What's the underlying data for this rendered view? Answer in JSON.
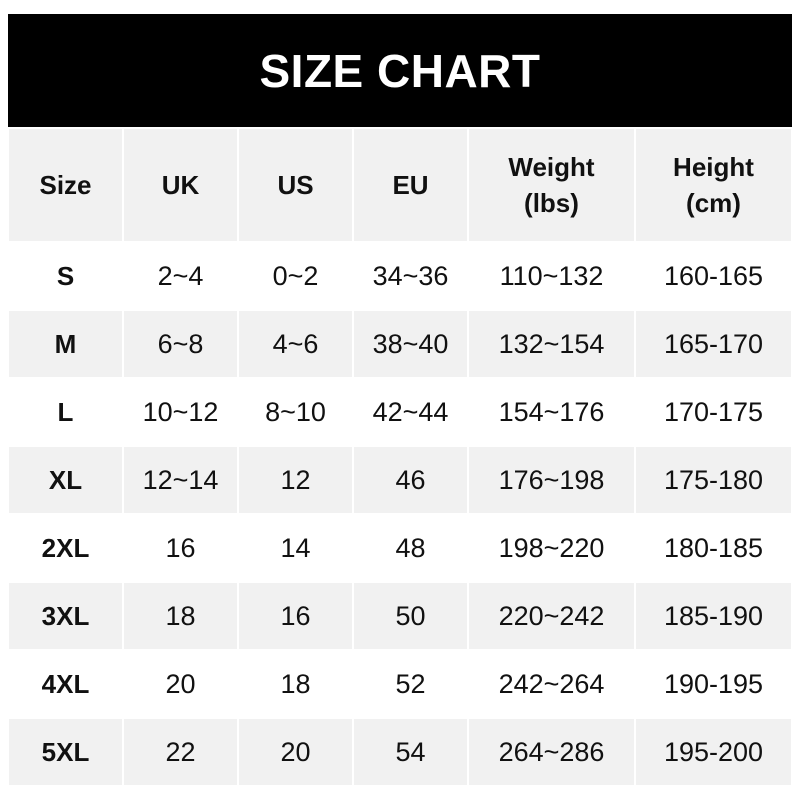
{
  "title": "SIZE CHART",
  "headers": [
    "Size",
    "UK",
    "US",
    "EU",
    "Weight\n(lbs)",
    "Height\n(cm)"
  ],
  "rows": [
    [
      "S",
      "2~4",
      "0~2",
      "34~36",
      "110~132",
      "160-165"
    ],
    [
      "M",
      "6~8",
      "4~6",
      "38~40",
      "132~154",
      "165-170"
    ],
    [
      "L",
      "10~12",
      "8~10",
      "42~44",
      "154~176",
      "170-175"
    ],
    [
      "XL",
      "12~14",
      "12",
      "46",
      "176~198",
      "175-180"
    ],
    [
      "2XL",
      "16",
      "14",
      "48",
      "198~220",
      "180-185"
    ],
    [
      "3XL",
      "18",
      "16",
      "50",
      "220~242",
      "185-190"
    ],
    [
      "4XL",
      "20",
      "18",
      "52",
      "242~264",
      "190-195"
    ],
    [
      "5XL",
      "22",
      "20",
      "54",
      "264~286",
      "195-200"
    ]
  ],
  "colors": {
    "banner": "#000000",
    "stripe": "#f1f1f1",
    "text": "#111111"
  }
}
